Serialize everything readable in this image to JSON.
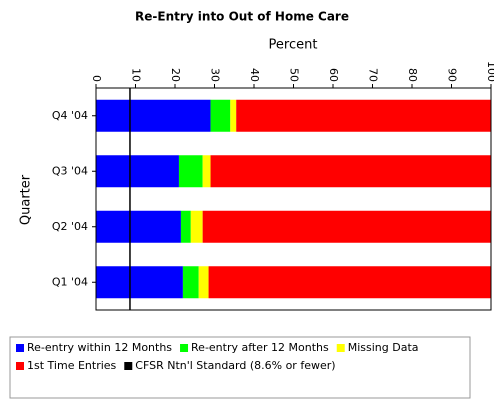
{
  "chart_data": {
    "type": "stacked_barh",
    "title": "Re-Entry into Out of Home Care",
    "xlabel": "Percent",
    "ylabel": "Quarter",
    "categories": [
      "Q4 '04",
      "Q3 '04",
      "Q2 '04",
      "Q1 '04"
    ],
    "series": [
      {
        "name": "Re-entry within 12 Months",
        "color": "#0000ff",
        "values": [
          29,
          21,
          21.5,
          22
        ]
      },
      {
        "name": "Re-entry after 12 Months",
        "color": "#00ff00",
        "values": [
          5,
          6,
          2.5,
          4
        ]
      },
      {
        "name": "Missing Data",
        "color": "#ffff00",
        "values": [
          1.5,
          2,
          3,
          2.5
        ]
      },
      {
        "name": "1st Time Entries",
        "color": "#ff0000",
        "values": [
          64.5,
          71,
          73,
          71.5
        ]
      }
    ],
    "reference_line": {
      "name": "CFSR Ntn'l Standard (8.6% or fewer)",
      "color": "#000000",
      "value": 8.6
    },
    "xlim": [
      0,
      100
    ],
    "xticks": [
      0,
      10,
      20,
      30,
      40,
      50,
      60,
      70,
      80,
      90,
      100
    ]
  }
}
